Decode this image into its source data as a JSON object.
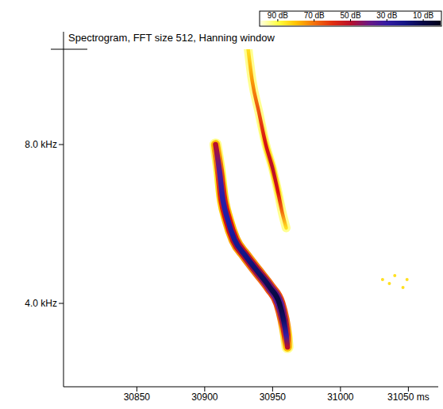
{
  "chart_data": {
    "type": "spectrogram",
    "title": "Spectrogram, FFT size 512, Hanning window",
    "xlim": [
      30796,
      31072
    ],
    "xticks": [
      30850,
      30900,
      30950,
      31000,
      {
        "value": 31050,
        "label": "31050 ms"
      }
    ],
    "ylim": [
      1.9,
      10.4
    ],
    "yticks": [
      {
        "value": 4,
        "label": "4.0 kHz"
      },
      {
        "value": 8,
        "label": "8.0 kHz"
      }
    ],
    "series": [
      {
        "type": "line",
        "x": [
          30908,
          30911,
          30913,
          30917,
          30922,
          30930,
          30939,
          30948,
          30955,
          30958,
          30960,
          30961
        ],
        "values": [
          8.0,
          7.3,
          6.7,
          6.1,
          5.6,
          5.2,
          4.8,
          4.4,
          4.0,
          3.6,
          3.2,
          2.9
        ],
        "level": [
          50,
          35,
          28,
          25,
          22,
          20,
          16,
          12,
          8,
          15,
          30,
          50
        ]
      },
      {
        "type": "line",
        "x": [
          30932,
          30935,
          30940,
          30945,
          30950,
          30954,
          30957,
          30960
        ],
        "values": [
          10.4,
          9.6,
          8.8,
          8.0,
          7.4,
          6.8,
          6.3,
          5.9
        ],
        "level": [
          85,
          75,
          65,
          55,
          50,
          55,
          70,
          85
        ]
      },
      {
        "type": "scatter",
        "x": [
          31031,
          31036,
          31040,
          31046,
          31049
        ],
        "values": [
          4.6,
          4.5,
          4.7,
          4.4,
          4.6
        ],
        "level": [
          85,
          85,
          85,
          85,
          85
        ]
      }
    ],
    "colorbar": {
      "range": [
        100,
        0
      ],
      "ticks": [
        {
          "value": 90,
          "label": "90 dB"
        },
        {
          "value": 70,
          "label": "70 dB"
        },
        {
          "value": 50,
          "label": "50 dB"
        },
        {
          "value": 30,
          "label": "30 dB"
        },
        {
          "value": 10,
          "label": "10 dB"
        }
      ]
    }
  }
}
